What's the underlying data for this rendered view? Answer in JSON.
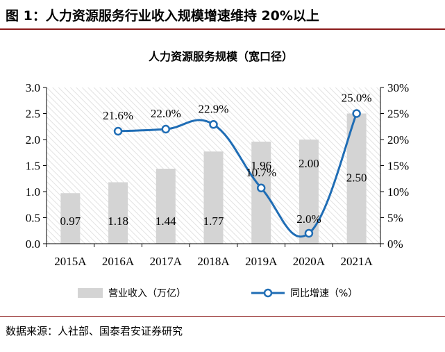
{
  "figure_title": "图 1：人力资源服务行业收入规模增速维持 20%以上",
  "source_note": "数据来源：人社部、国泰君安证券研究",
  "colors": {
    "bar": "#d4d4d4",
    "line": "#1f6db5",
    "rule": "#8b1a1a",
    "grid": "#d9d9d9"
  },
  "chart_data": {
    "type": "bar",
    "title": "人力资源服务规模（宽口径）",
    "categories": [
      "2015A",
      "2016A",
      "2017A",
      "2018A",
      "2019A",
      "2020A",
      "2021A"
    ],
    "y_left_ticks": [
      "0.0",
      "0.5",
      "1.0",
      "1.5",
      "2.0",
      "2.5",
      "3.0"
    ],
    "y_right_ticks": [
      "0%",
      "5%",
      "10%",
      "15%",
      "20%",
      "25%",
      "30%"
    ],
    "ylim_left": [
      0,
      3.0
    ],
    "ylim_right": [
      0,
      30
    ],
    "series": [
      {
        "name": "营业收入（万亿）",
        "type": "bar",
        "axis": "left",
        "values": [
          0.97,
          1.18,
          1.44,
          1.77,
          1.96,
          2.0,
          2.5
        ],
        "labels": [
          "0.97",
          "1.18",
          "1.44",
          "1.77",
          "1.96",
          "2.00",
          "2.50"
        ]
      },
      {
        "name": "同比增速（%）",
        "type": "line",
        "axis": "right",
        "values": [
          null,
          21.6,
          22.0,
          22.9,
          10.7,
          2.0,
          25.0
        ],
        "labels": [
          "",
          "21.6%",
          "22.0%",
          "22.9%",
          "10.7%",
          "2.0%",
          "25.0%"
        ]
      }
    ],
    "legend": [
      "营业收入（万亿）",
      "同比增速（%）"
    ],
    "legend_position": "bottom",
    "grid": false
  }
}
